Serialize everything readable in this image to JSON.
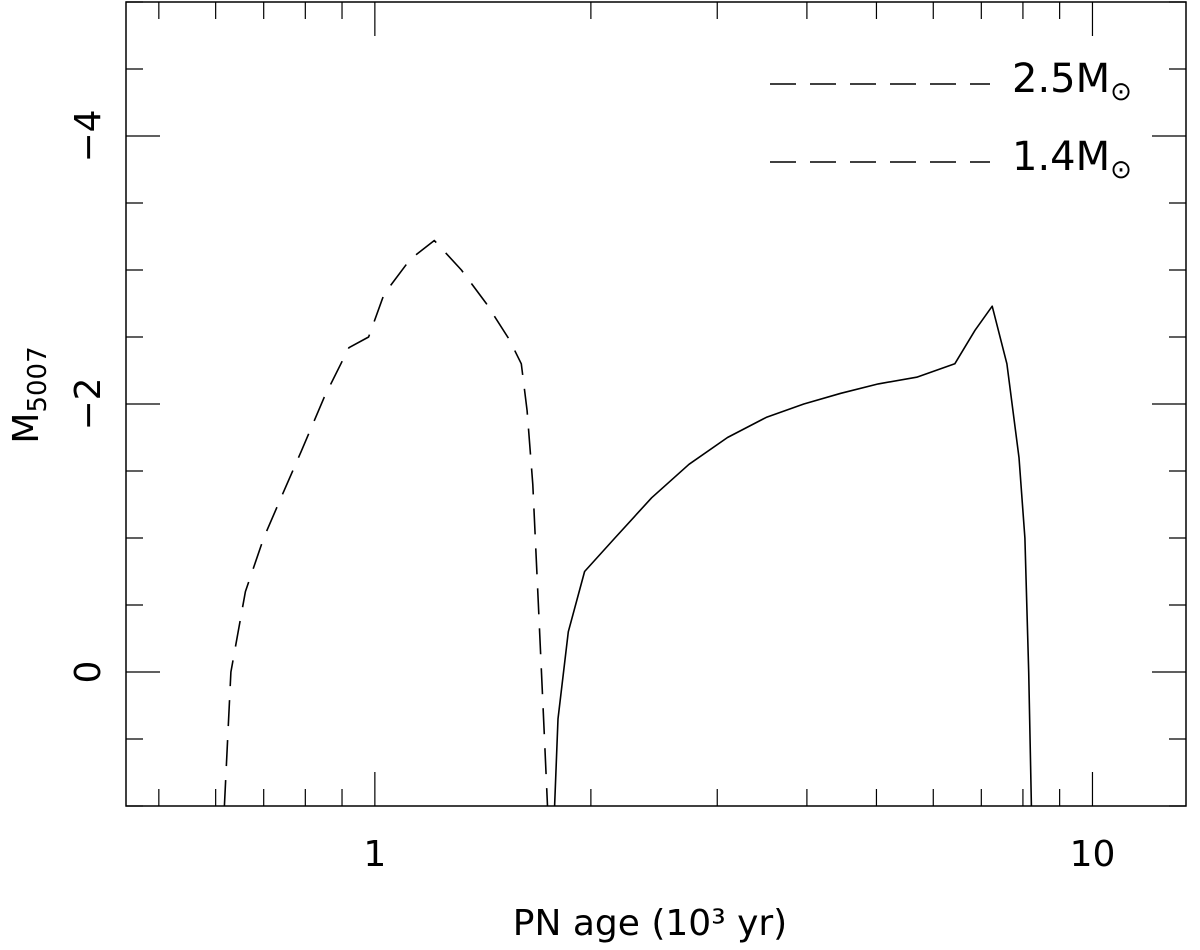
{
  "chart_data": {
    "type": "line",
    "title": "",
    "xlabel": "PN age (10³ yr)",
    "ylabel_main": "M",
    "ylabel_sub": "5007",
    "x_scale": "log",
    "xlim": [
      0.45,
      13.5
    ],
    "ylim": [
      1.0,
      -5.0
    ],
    "y_inverted": true,
    "x_ticks": [
      1,
      10
    ],
    "x_tick_labels": [
      "1",
      "10"
    ],
    "y_ticks": [
      0,
      -2,
      -4
    ],
    "y_tick_labels": [
      "0",
      "−2",
      "−4"
    ],
    "grid": false,
    "legend_placement": "top-right",
    "legend_symbol": "M",
    "legend_symbol_sub": "⊙",
    "series": [
      {
        "name": "2.5",
        "style": "dashed",
        "points": [
          [
            0.617,
            1.0
          ],
          [
            0.63,
            0.0
          ],
          [
            0.66,
            -0.6
          ],
          [
            0.7,
            -1.0
          ],
          [
            0.74,
            -1.3
          ],
          [
            0.79,
            -1.65
          ],
          [
            0.85,
            -2.05
          ],
          [
            0.92,
            -2.42
          ],
          [
            0.98,
            -2.5
          ],
          [
            1.03,
            -2.82
          ],
          [
            1.12,
            -3.08
          ],
          [
            1.21,
            -3.22
          ],
          [
            1.32,
            -3.0
          ],
          [
            1.43,
            -2.75
          ],
          [
            1.54,
            -2.48
          ],
          [
            1.6,
            -2.3
          ],
          [
            1.63,
            -1.95
          ],
          [
            1.66,
            -1.4
          ],
          [
            1.69,
            -0.5
          ],
          [
            1.72,
            0.4
          ],
          [
            1.74,
            1.0
          ]
        ]
      },
      {
        "name": "1.4",
        "style": "solid",
        "points": [
          [
            1.78,
            1.0
          ],
          [
            1.8,
            0.35
          ],
          [
            1.86,
            -0.3
          ],
          [
            1.96,
            -0.75
          ],
          [
            2.16,
            -1.0
          ],
          [
            2.43,
            -1.3
          ],
          [
            2.74,
            -1.55
          ],
          [
            3.1,
            -1.75
          ],
          [
            3.51,
            -1.9
          ],
          [
            3.96,
            -2.0
          ],
          [
            4.46,
            -2.08
          ],
          [
            5.03,
            -2.15
          ],
          [
            5.69,
            -2.2
          ],
          [
            6.43,
            -2.3
          ],
          [
            6.86,
            -2.55
          ],
          [
            7.25,
            -2.73
          ],
          [
            7.6,
            -2.3
          ],
          [
            7.9,
            -1.6
          ],
          [
            8.05,
            -1.0
          ],
          [
            8.15,
            0.0
          ],
          [
            8.2,
            0.7
          ],
          [
            8.22,
            1.0
          ]
        ]
      }
    ]
  }
}
